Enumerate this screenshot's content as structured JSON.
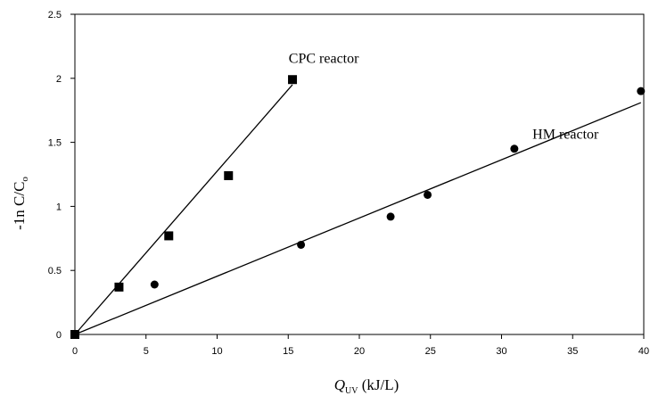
{
  "chart_data": {
    "type": "scatter",
    "xlabel": {
      "main": "Q",
      "sub": "UV",
      "rest": " (kJ/L)"
    },
    "ylabel": "-1n C/C",
    "ylabel_sub": "o",
    "xlim": [
      0,
      40
    ],
    "ylim": [
      0,
      2.5
    ],
    "xticks": [
      "0",
      "5",
      "10",
      "15",
      "20",
      "25",
      "30",
      "35",
      "40"
    ],
    "yticks": [
      "0",
      "0.5",
      "1",
      "1.5",
      "2",
      "2.5"
    ],
    "grid": false,
    "series": [
      {
        "name": "CPC reactor",
        "marker": "square",
        "points": [
          [
            0,
            0
          ],
          [
            3.1,
            0.37
          ],
          [
            6.6,
            0.77
          ],
          [
            10.8,
            1.24
          ],
          [
            15.3,
            1.99
          ]
        ],
        "fit": [
          [
            0,
            0
          ],
          [
            15.3,
            1.95
          ]
        ]
      },
      {
        "name": "HM reactor",
        "marker": "circle",
        "points": [
          [
            0,
            0
          ],
          [
            5.6,
            0.39
          ],
          [
            15.9,
            0.7
          ],
          [
            22.2,
            0.92
          ],
          [
            24.8,
            1.09
          ],
          [
            30.9,
            1.45
          ],
          [
            39.8,
            1.9
          ]
        ],
        "fit": [
          [
            0,
            0
          ],
          [
            39.8,
            1.81
          ]
        ]
      }
    ],
    "annotations": [
      {
        "text": "CPC reactor",
        "at": [
          17.5,
          2.12
        ]
      },
      {
        "text": "HM reactor",
        "at": [
          34.5,
          1.53
        ]
      }
    ]
  }
}
